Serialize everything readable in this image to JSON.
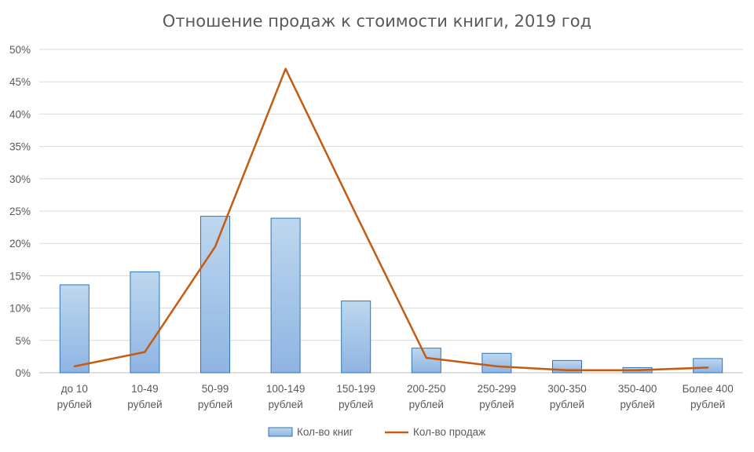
{
  "chart_data": {
    "type": "bar",
    "title": "Отношение продаж к стоимости книги, 2019 год",
    "xlabel": "",
    "ylabel": "",
    "ylim": [
      0,
      50
    ],
    "y_unit": "%",
    "y_ticks": [
      "0%",
      "5%",
      "10%",
      "15%",
      "20%",
      "25%",
      "30%",
      "35%",
      "40%",
      "45%",
      "50%"
    ],
    "grid": true,
    "legend_position": "bottom",
    "categories": [
      [
        "до 10",
        "рублей"
      ],
      [
        "10-49",
        "рублей"
      ],
      [
        "50-99",
        "рублей"
      ],
      [
        "100-149",
        "рублей"
      ],
      [
        "150-199",
        "рублей"
      ],
      [
        "200-250",
        "рублей"
      ],
      [
        "250-299",
        "рублей"
      ],
      [
        "300-350",
        "рублей"
      ],
      [
        "350-400",
        "рублей"
      ],
      [
        "Более 400",
        "рублей"
      ]
    ],
    "series": [
      {
        "name": "Кол-во книг",
        "type": "bar",
        "color": "#9dc3e6",
        "border_color": "#2e75b6",
        "values": [
          13.6,
          15.6,
          24.2,
          23.9,
          11.1,
          3.8,
          3.0,
          1.9,
          0.8,
          2.2
        ]
      },
      {
        "name": "Кол-во продаж",
        "type": "line",
        "color": "#c55a11",
        "values": [
          1.0,
          3.2,
          19.5,
          47.0,
          24.5,
          2.3,
          1.0,
          0.4,
          0.4,
          0.8
        ]
      }
    ]
  }
}
